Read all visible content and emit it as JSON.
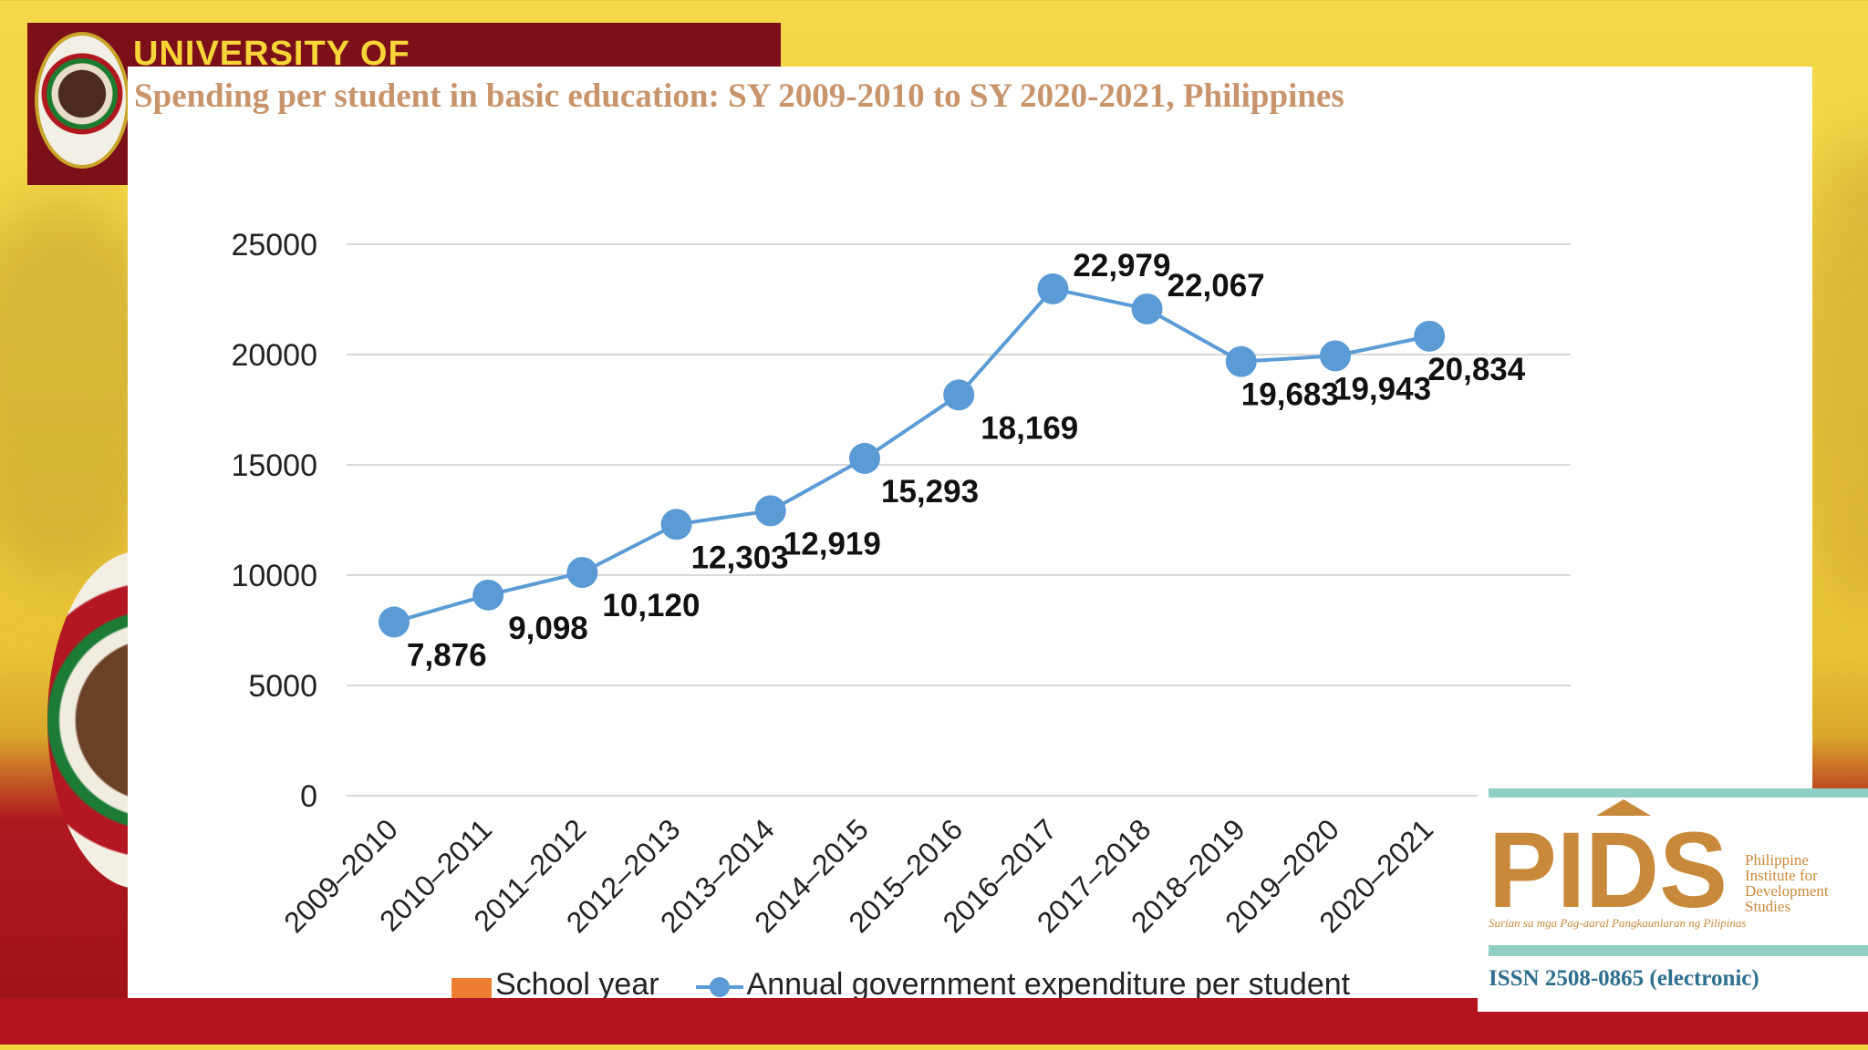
{
  "header": {
    "university_text": "UNIVERSITY OF"
  },
  "chart_data": {
    "type": "line",
    "title": "Spending per student in basic education: SY 2009-2010 to SY 2020-2021, Philippines",
    "categories": [
      "2009–2010",
      "2010–2011",
      "2011–2012",
      "2012–2013",
      "2013–2014",
      "2014–2015",
      "2015–2016",
      "2016–2017",
      "2017–2018",
      "2018–2019",
      "2019–2020",
      "2020–2021"
    ],
    "series": [
      {
        "name": "Annual government expenditure per student",
        "values": [
          7876,
          9098,
          10120,
          12303,
          12919,
          15293,
          18169,
          22979,
          22067,
          19683,
          19943,
          20834
        ],
        "labels": [
          "7,876",
          "9,098",
          "10,120",
          "12,303",
          "12,919",
          "15,293",
          "18,169",
          "22,979",
          "22,067",
          "19,683",
          "19,943",
          "20,834"
        ]
      }
    ],
    "ylim": [
      0,
      25000
    ],
    "yticks": [
      "25000",
      "20000",
      "15000",
      "10000",
      "5000",
      "0"
    ],
    "ytick_values": [
      25000,
      20000,
      15000,
      10000,
      5000,
      0
    ],
    "grid": true,
    "legend": {
      "placement": "bottom",
      "bar_label": "School year",
      "line_label": "Annual government expenditure per student"
    },
    "colors": {
      "line": "#5b9bd5",
      "bar": "#ed7d31",
      "grid": "#d9d9d9",
      "title": "#c8946b"
    }
  },
  "pids_logo": {
    "mark": "PIDS",
    "name_lines": [
      "Philippine",
      "Institute for",
      "Development",
      "Studies"
    ],
    "tagline": "Surian sa mga Pag-aaral Pangkaunlaran ng Pilipinas",
    "issn": "ISSN 2508-0865 (electronic)",
    "color": "#c9893b"
  }
}
